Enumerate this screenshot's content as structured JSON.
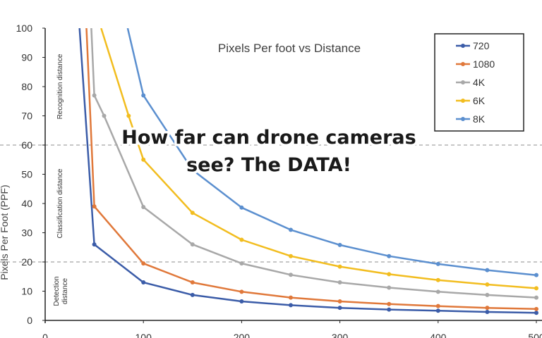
{
  "chart_data": {
    "type": "line",
    "title": "Pixels Per foot vs Distance",
    "ylabel": "Pixels Per Foot (PPF)",
    "xlim": [
      0,
      500
    ],
    "ylim": [
      0,
      100
    ],
    "x_ticks": [
      0,
      100,
      200,
      300,
      400,
      500
    ],
    "y_ticks": [
      0,
      10,
      20,
      30,
      40,
      50,
      60,
      70,
      80,
      90,
      100
    ],
    "legend_position": "top-right",
    "reference_lines": [
      60,
      20
    ],
    "regions": [
      {
        "label": "Recognition distance",
        "y_range": [
          60,
          100
        ]
      },
      {
        "label": "Classification distance",
        "y_range": [
          20,
          60
        ]
      },
      {
        "label": "Detection distance",
        "lines": [
          "Detection",
          "distance"
        ],
        "y_range": [
          0,
          20
        ]
      }
    ],
    "overlay_text": [
      "How far can drone cameras",
      "see? The DATA!"
    ],
    "series": [
      {
        "name": "720",
        "color": "#3b5ca8",
        "x": [
          35,
          50,
          100,
          150,
          200,
          250,
          300,
          350,
          400,
          450,
          500
        ],
        "y": [
          100,
          26,
          13,
          8.7,
          6.5,
          5.2,
          4.3,
          3.7,
          3.3,
          2.9,
          2.6
        ]
      },
      {
        "name": "1080",
        "color": "#e0783a",
        "x": [
          42,
          50,
          100,
          150,
          200,
          250,
          300,
          350,
          400,
          450,
          500
        ],
        "y": [
          100,
          39,
          19.5,
          13,
          9.8,
          7.8,
          6.5,
          5.6,
          4.9,
          4.3,
          3.9
        ]
      },
      {
        "name": "4K",
        "color": "#a8a8a8",
        "x": [
          47,
          50,
          60,
          100,
          150,
          200,
          250,
          300,
          350,
          400,
          450,
          500
        ],
        "y": [
          100,
          77,
          70,
          38.8,
          26,
          19.5,
          15.6,
          13,
          11.2,
          9.8,
          8.7,
          7.8
        ]
      },
      {
        "name": "6K",
        "color": "#f2bd1f",
        "x": [
          57,
          85,
          100,
          150,
          200,
          250,
          300,
          350,
          400,
          450,
          500
        ],
        "y": [
          100,
          70,
          55,
          36.8,
          27.6,
          22,
          18.4,
          15.8,
          13.8,
          12.3,
          11
        ]
      },
      {
        "name": "8K",
        "color": "#5b8fcf",
        "x": [
          84,
          100,
          150,
          200,
          250,
          300,
          350,
          400,
          450,
          500
        ],
        "y": [
          100,
          77,
          51.5,
          38.6,
          31,
          25.8,
          22,
          19.3,
          17.2,
          15.5
        ]
      }
    ]
  }
}
